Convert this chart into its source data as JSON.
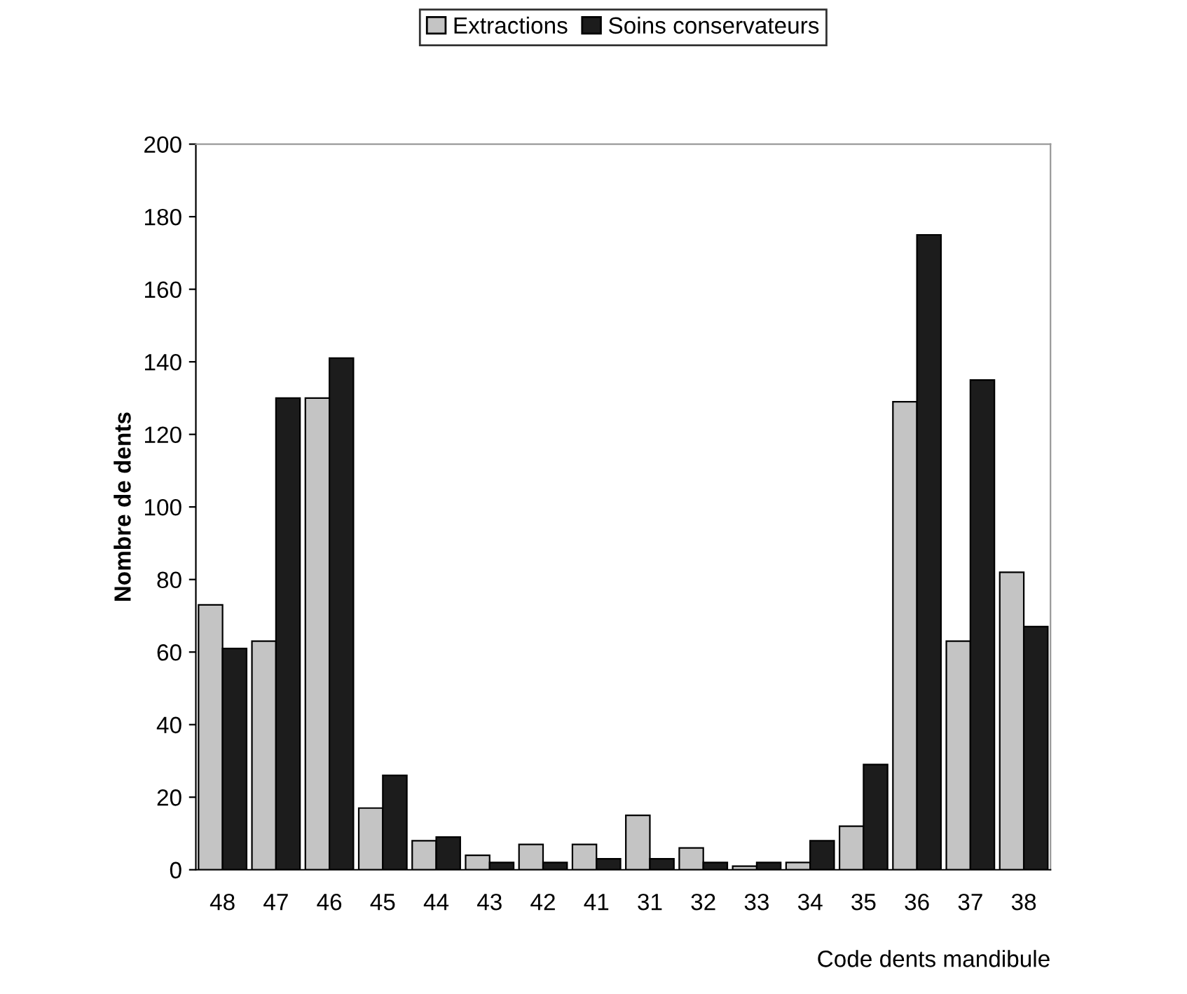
{
  "chart_data": {
    "type": "bar",
    "xlabel": "Code dents mandibule",
    "ylabel": "Nombre de dents",
    "categories": [
      "48",
      "47",
      "46",
      "45",
      "44",
      "43",
      "42",
      "41",
      "31",
      "32",
      "33",
      "34",
      "35",
      "36",
      "37",
      "38"
    ],
    "series": [
      {
        "name": "Extractions",
        "color": "#c4c4c4",
        "values": [
          73,
          63,
          130,
          17,
          8,
          4,
          7,
          7,
          15,
          6,
          1,
          2,
          12,
          129,
          63,
          82
        ]
      },
      {
        "name": "Soins conservateurs",
        "color": "#1c1c1c",
        "values": [
          61,
          130,
          141,
          26,
          9,
          2,
          2,
          3,
          3,
          2,
          2,
          8,
          29,
          175,
          135,
          67
        ]
      }
    ],
    "ylim": [
      0,
      200
    ],
    "yticks": [
      0,
      20,
      40,
      60,
      80,
      100,
      120,
      140,
      160,
      180,
      200
    ],
    "grid": false,
    "legend": "top"
  }
}
